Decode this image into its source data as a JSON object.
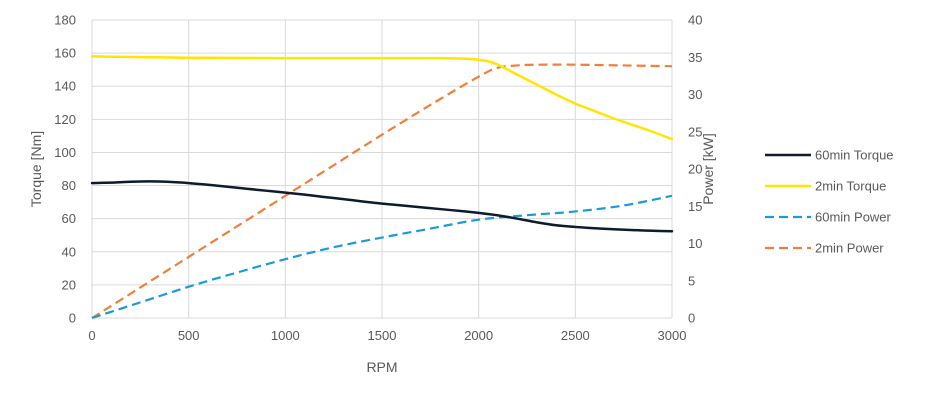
{
  "chart_data": {
    "type": "line",
    "title": "",
    "xlabel": "RPM",
    "ylabel_left": "Torque [Nm]",
    "ylabel_right": "Power [kW]",
    "xlim": [
      0,
      3000
    ],
    "ylim_left": [
      0,
      180
    ],
    "ylim_right": [
      0,
      40
    ],
    "x_ticks": [
      "0",
      "500",
      "1000",
      "1500",
      "2000",
      "2500",
      "3000"
    ],
    "y_left_ticks": [
      "0",
      "20",
      "40",
      "60",
      "80",
      "100",
      "120",
      "140",
      "160",
      "180"
    ],
    "y_right_ticks": [
      "0",
      "5",
      "10",
      "15",
      "20",
      "25",
      "30",
      "35",
      "40"
    ],
    "grid": true,
    "legend_position": "right",
    "series": [
      {
        "name": "60min Torque",
        "axis": "left",
        "style": "solid",
        "color": "#0d1b2e",
        "points": [
          [
            0,
            81.5
          ],
          [
            100,
            81.8
          ],
          [
            200,
            82.3
          ],
          [
            300,
            82.5
          ],
          [
            400,
            82.2
          ],
          [
            500,
            81.5
          ],
          [
            600,
            80.5
          ],
          [
            700,
            79.3
          ],
          [
            800,
            78.1
          ],
          [
            900,
            76.9
          ],
          [
            1000,
            75.7
          ],
          [
            1100,
            74.5
          ],
          [
            1200,
            73.1
          ],
          [
            1300,
            71.8
          ],
          [
            1400,
            70.4
          ],
          [
            1500,
            69.1
          ],
          [
            1600,
            68.0
          ],
          [
            1700,
            66.9
          ],
          [
            1800,
            65.8
          ],
          [
            1900,
            64.7
          ],
          [
            2000,
            63.5
          ],
          [
            2100,
            62.0
          ],
          [
            2200,
            60.0
          ],
          [
            2300,
            57.8
          ],
          [
            2400,
            56.0
          ],
          [
            2500,
            55.0
          ],
          [
            2600,
            54.2
          ],
          [
            2700,
            53.6
          ],
          [
            2800,
            53.1
          ],
          [
            2900,
            52.7
          ],
          [
            3000,
            52.4
          ]
        ]
      },
      {
        "name": "2min Torque",
        "axis": "left",
        "style": "solid",
        "color": "#ffe600",
        "points": [
          [
            0,
            158.0
          ],
          [
            250,
            157.6
          ],
          [
            500,
            157.2
          ],
          [
            1000,
            157.0
          ],
          [
            1500,
            157.0
          ],
          [
            1800,
            157.0
          ],
          [
            1950,
            156.5
          ],
          [
            2050,
            155.0
          ],
          [
            2100,
            153.0
          ],
          [
            2200,
            147.0
          ],
          [
            2300,
            141.0
          ],
          [
            2400,
            135.0
          ],
          [
            2500,
            129.5
          ],
          [
            2600,
            125.0
          ],
          [
            2700,
            120.5
          ],
          [
            2800,
            116.5
          ],
          [
            2900,
            112.5
          ],
          [
            3000,
            108.0
          ]
        ]
      },
      {
        "name": "60min Power",
        "axis": "right",
        "style": "dashed",
        "color": "#1a9bd7",
        "points": [
          [
            0,
            0.0
          ],
          [
            250,
            2.1
          ],
          [
            500,
            4.2
          ],
          [
            750,
            6.1
          ],
          [
            1000,
            7.9
          ],
          [
            1250,
            9.5
          ],
          [
            1500,
            10.8
          ],
          [
            1750,
            12.0
          ],
          [
            2000,
            13.2
          ],
          [
            2250,
            13.8
          ],
          [
            2500,
            14.3
          ],
          [
            2750,
            15.1
          ],
          [
            3000,
            16.4
          ]
        ]
      },
      {
        "name": "2min Power",
        "axis": "right",
        "style": "dashed",
        "color": "#f07f3c",
        "points": [
          [
            0,
            0.0
          ],
          [
            250,
            4.1
          ],
          [
            500,
            8.2
          ],
          [
            750,
            12.3
          ],
          [
            1000,
            16.4
          ],
          [
            1250,
            20.5
          ],
          [
            1500,
            24.6
          ],
          [
            1750,
            28.6
          ],
          [
            2000,
            32.4
          ],
          [
            2100,
            33.6
          ],
          [
            2200,
            33.9
          ],
          [
            2300,
            34.0
          ],
          [
            2500,
            34.0
          ],
          [
            2750,
            33.9
          ],
          [
            3000,
            33.8
          ]
        ]
      }
    ]
  }
}
